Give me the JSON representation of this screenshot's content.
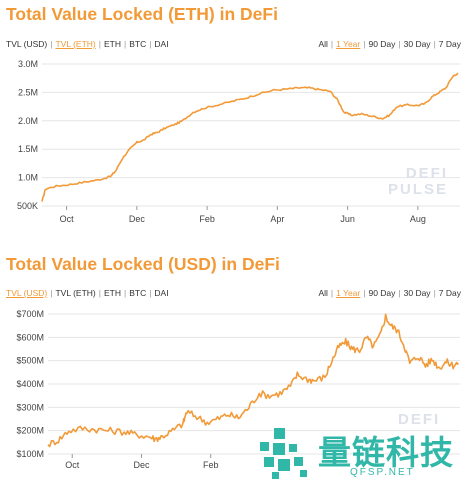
{
  "chart_data": [
    {
      "type": "line",
      "title": "Total Value Locked (ETH) in DeFi",
      "toolbar": {
        "metrics": [
          {
            "label": "TVL (USD)",
            "active": false
          },
          {
            "label": "TVL (ETH)",
            "active": true
          },
          {
            "label": "ETH",
            "active": false
          },
          {
            "label": "BTC",
            "active": false
          },
          {
            "label": "DAI",
            "active": false
          }
        ],
        "ranges": [
          {
            "label": "All",
            "active": false
          },
          {
            "label": "1 Year",
            "active": true
          },
          {
            "label": "90 Day",
            "active": false
          },
          {
            "label": "30 Day",
            "active": false
          },
          {
            "label": "7 Day",
            "active": false
          }
        ]
      },
      "x_ticks": [
        {
          "label": "Oct",
          "x": 0.7
        },
        {
          "label": "Dec",
          "x": 2.7
        },
        {
          "label": "Feb",
          "x": 4.7
        },
        {
          "label": "Apr",
          "x": 6.7
        },
        {
          "label": "Jun",
          "x": 8.7
        },
        {
          "label": "Aug",
          "x": 10.7
        }
      ],
      "xlim": [
        0,
        11.9
      ],
      "ylim": [
        500000,
        3000000
      ],
      "y_ticks": [
        {
          "label": "500K",
          "value": 500000
        },
        {
          "label": "1.0M",
          "value": 1000000
        },
        {
          "label": "1.5M",
          "value": 1500000
        },
        {
          "label": "2.0M",
          "value": 2000000
        },
        {
          "label": "2.5M",
          "value": 2500000
        },
        {
          "label": "3.0M",
          "value": 3000000
        }
      ],
      "series": [
        {
          "color": "#f29a38",
          "noise": 0.006,
          "points": [
            [
              0,
              580000
            ],
            [
              0.1,
              800000
            ],
            [
              0.4,
              850000
            ],
            [
              0.8,
              880000
            ],
            [
              1.2,
              920000
            ],
            [
              1.6,
              960000
            ],
            [
              1.95,
              1020000
            ],
            [
              2.1,
              1120000
            ],
            [
              2.3,
              1350000
            ],
            [
              2.5,
              1500000
            ],
            [
              2.7,
              1620000
            ],
            [
              2.9,
              1660000
            ],
            [
              3.1,
              1760000
            ],
            [
              3.3,
              1800000
            ],
            [
              3.5,
              1870000
            ],
            [
              3.8,
              1940000
            ],
            [
              4.0,
              2000000
            ],
            [
              4.3,
              2150000
            ],
            [
              4.6,
              2220000
            ],
            [
              5.0,
              2280000
            ],
            [
              5.4,
              2340000
            ],
            [
              5.8,
              2400000
            ],
            [
              6.2,
              2480000
            ],
            [
              6.6,
              2540000
            ],
            [
              7.0,
              2560000
            ],
            [
              7.3,
              2580000
            ],
            [
              7.6,
              2580000
            ],
            [
              7.9,
              2550000
            ],
            [
              8.2,
              2520000
            ],
            [
              8.4,
              2380000
            ],
            [
              8.6,
              2150000
            ],
            [
              8.8,
              2100000
            ],
            [
              9.1,
              2120000
            ],
            [
              9.4,
              2080000
            ],
            [
              9.7,
              2040000
            ],
            [
              9.9,
              2100000
            ],
            [
              10.1,
              2250000
            ],
            [
              10.4,
              2280000
            ],
            [
              10.7,
              2270000
            ],
            [
              10.9,
              2300000
            ],
            [
              11.1,
              2420000
            ],
            [
              11.3,
              2500000
            ],
            [
              11.5,
              2580000
            ],
            [
              11.7,
              2790000
            ],
            [
              11.85,
              2830000
            ]
          ]
        }
      ]
    },
    {
      "type": "line",
      "title": "Total Value Locked (USD) in DeFi",
      "toolbar": {
        "metrics": [
          {
            "label": "TVL (USD)",
            "active": true
          },
          {
            "label": "TVL (ETH)",
            "active": false
          },
          {
            "label": "ETH",
            "active": false
          },
          {
            "label": "BTC",
            "active": false
          },
          {
            "label": "DAI",
            "active": false
          }
        ],
        "ranges": [
          {
            "label": "All",
            "active": false
          },
          {
            "label": "1 Year",
            "active": true
          },
          {
            "label": "90 Day",
            "active": false
          },
          {
            "label": "30 Day",
            "active": false
          },
          {
            "label": "7 Day",
            "active": false
          }
        ]
      },
      "x_ticks": [
        {
          "label": "Oct",
          "x": 0.7
        },
        {
          "label": "Dec",
          "x": 2.7
        },
        {
          "label": "Feb",
          "x": 4.7
        }
      ],
      "xlim": [
        0,
        11.9
      ],
      "ylim": [
        100,
        700
      ],
      "y_ticks": [
        {
          "label": "$100M",
          "value": 100
        },
        {
          "label": "$200M",
          "value": 200
        },
        {
          "label": "$300M",
          "value": 300
        },
        {
          "label": "$400M",
          "value": 400
        },
        {
          "label": "$500M",
          "value": 500
        },
        {
          "label": "$600M",
          "value": 600
        },
        {
          "label": "$700M",
          "value": 700
        }
      ],
      "series": [
        {
          "color": "#f29a38",
          "noise": 0.025,
          "points": [
            [
              0,
              140
            ],
            [
              0.3,
              160
            ],
            [
              0.6,
              200
            ],
            [
              1.0,
              210
            ],
            [
              1.4,
              205
            ],
            [
              1.8,
              200
            ],
            [
              2.2,
              195
            ],
            [
              2.5,
              185
            ],
            [
              2.9,
              175
            ],
            [
              3.1,
              165
            ],
            [
              3.3,
              175
            ],
            [
              3.6,
              200
            ],
            [
              3.9,
              230
            ],
            [
              4.0,
              280
            ],
            [
              4.3,
              260
            ],
            [
              4.6,
              235
            ],
            [
              4.9,
              250
            ],
            [
              5.2,
              270
            ],
            [
              5.5,
              255
            ],
            [
              5.8,
              300
            ],
            [
              6.1,
              360
            ],
            [
              6.4,
              350
            ],
            [
              6.7,
              360
            ],
            [
              7.0,
              390
            ],
            [
              7.2,
              440
            ],
            [
              7.5,
              420
            ],
            [
              7.7,
              415
            ],
            [
              8.0,
              430
            ],
            [
              8.2,
              500
            ],
            [
              8.4,
              560
            ],
            [
              8.6,
              580
            ],
            [
              8.8,
              550
            ],
            [
              9.0,
              545
            ],
            [
              9.2,
              600
            ],
            [
              9.4,
              560
            ],
            [
              9.6,
              610
            ],
            [
              9.75,
              690
            ],
            [
              9.9,
              650
            ],
            [
              10.1,
              630
            ],
            [
              10.3,
              560
            ],
            [
              10.45,
              490
            ],
            [
              10.7,
              520
            ],
            [
              10.9,
              480
            ],
            [
              11.1,
              505
            ],
            [
              11.3,
              470
            ],
            [
              11.5,
              495
            ],
            [
              11.7,
              480
            ],
            [
              11.85,
              490
            ]
          ]
        }
      ]
    }
  ],
  "watermarks": {
    "defi_pulse": [
      "DEFI",
      "PULSE"
    ],
    "qfsp_cn": "量链科技",
    "qfsp_en": "QFSP.NET"
  }
}
